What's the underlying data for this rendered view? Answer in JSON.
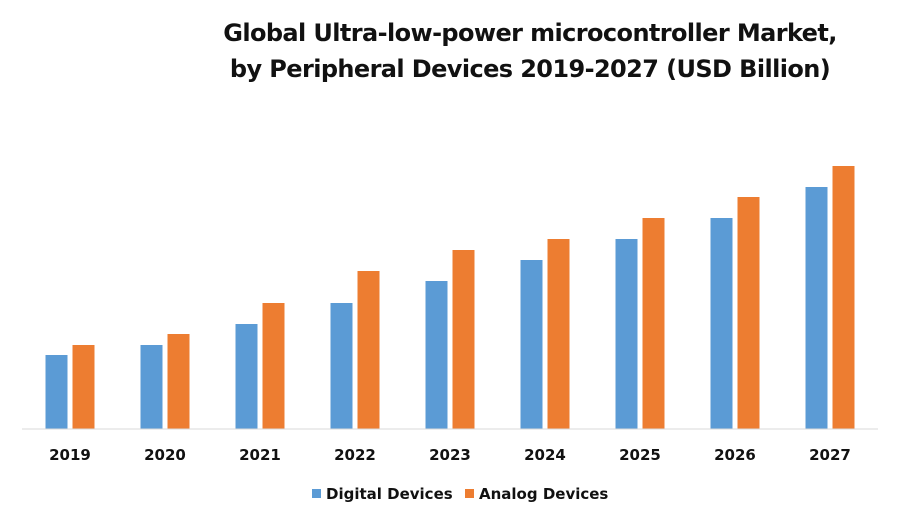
{
  "chart_data": {
    "type": "bar",
    "title": "Global Ultra-low-power microcontroller Market, by Peripheral Devices 2019-2027 (USD Billion)",
    "title_lines": [
      "Global Ultra-low-power microcontroller Market,",
      "by Peripheral Devices 2019-2027 (USD Billion)"
    ],
    "xlabel": "",
    "ylabel": "",
    "categories": [
      "2019",
      "2020",
      "2021",
      "2022",
      "2023",
      "2024",
      "2025",
      "2026",
      "2027"
    ],
    "series": [
      {
        "name": "Digital Devices",
        "color": "#5B9BD5",
        "values": [
          7.4,
          8.4,
          10.5,
          12.6,
          14.8,
          16.9,
          19.0,
          21.1,
          24.2
        ]
      },
      {
        "name": "Analog Devices",
        "color": "#ED7D31",
        "values": [
          8.4,
          9.5,
          12.6,
          15.8,
          17.9,
          19.0,
          21.1,
          23.2,
          26.3
        ]
      }
    ],
    "ylim": [
      0,
      30
    ],
    "y_axis_visible": false,
    "grid": false,
    "legend": {
      "position": "bottom-center",
      "entries": [
        "Digital Devices",
        "Analog Devices"
      ]
    },
    "notes": "No y-axis scale shown; values are estimated relative magnitudes."
  }
}
